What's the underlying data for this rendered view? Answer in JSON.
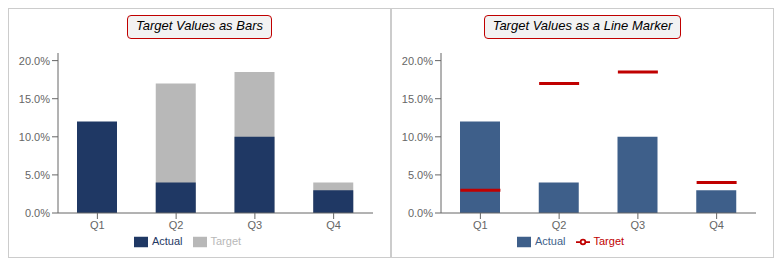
{
  "chart_data": [
    {
      "type": "bar",
      "title": "Target Values as Bars",
      "categories": [
        "Q1",
        "Q2",
        "Q3",
        "Q4"
      ],
      "series": [
        {
          "name": "Target",
          "type": "bar",
          "color": "#b8b8b8",
          "values": [
            0.03,
            0.17,
            0.185,
            0.04
          ]
        },
        {
          "name": "Actual",
          "type": "bar",
          "color": "#1f3864",
          "values": [
            0.12,
            0.04,
            0.1,
            0.03
          ]
        }
      ],
      "ylim": [
        0,
        0.21
      ],
      "yticks": [
        {
          "value": 0.0,
          "label": "0.0%"
        },
        {
          "value": 0.05,
          "label": "5.0%"
        },
        {
          "value": 0.1,
          "label": "10.0%"
        },
        {
          "value": 0.15,
          "label": "15.0%"
        },
        {
          "value": 0.2,
          "label": "20.0%"
        }
      ],
      "legend": "bottom",
      "grid": false
    },
    {
      "type": "bar",
      "title": "Target Values as a Line Marker",
      "categories": [
        "Q1",
        "Q2",
        "Q3",
        "Q4"
      ],
      "series": [
        {
          "name": "Actual",
          "type": "bar",
          "color": "#3e5f8a",
          "values": [
            0.12,
            0.04,
            0.1,
            0.03
          ]
        },
        {
          "name": "Target",
          "type": "scatter",
          "marker": "hline",
          "color": "#c00000",
          "values": [
            0.03,
            0.17,
            0.185,
            0.04
          ]
        }
      ],
      "ylim": [
        0,
        0.21
      ],
      "yticks": [
        {
          "value": 0.0,
          "label": "0.0%"
        },
        {
          "value": 0.05,
          "label": "5.0%"
        },
        {
          "value": 0.1,
          "label": "10.0%"
        },
        {
          "value": 0.15,
          "label": "15.0%"
        },
        {
          "value": 0.2,
          "label": "20.0%"
        }
      ],
      "legend": "bottom",
      "grid": false
    }
  ]
}
